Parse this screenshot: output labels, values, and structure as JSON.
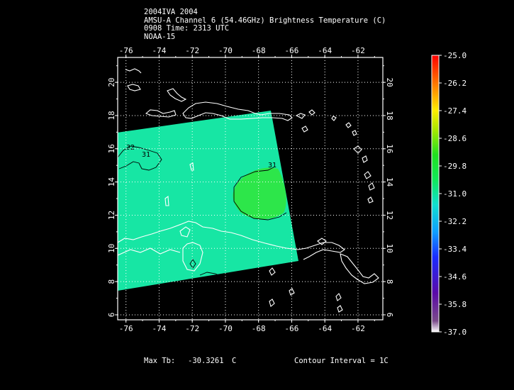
{
  "header": {
    "line1": "2004IVA 2004",
    "line2": "AMSU-A Channel 6 (54.46GHz) Brightness Temperature (C)",
    "line3": "0908 Time: 2313 UTC",
    "line4": "NOAA-15"
  },
  "map": {
    "lon_range": [
      -76.5,
      -60.5
    ],
    "lat_range": [
      5.7,
      21.5
    ],
    "lon_ticks": [
      "-76",
      "-74",
      "-72",
      "-70",
      "-68",
      "-66",
      "-64",
      "-62"
    ],
    "lat_ticks": [
      "6",
      "8",
      "10",
      "12",
      "14",
      "16",
      "18",
      "20"
    ],
    "grid": "dotted",
    "swath_color": "#17e6a4",
    "warm_patch_color": "#2de64a",
    "coastline_color": "#ffffff",
    "contour_color": "#000000",
    "contour_labels": [
      "32",
      "31",
      "31"
    ]
  },
  "colorbar": {
    "labels": [
      "-25.0",
      "-26.2",
      "-27.4",
      "-28.6",
      "-29.8",
      "-31.0",
      "-32.2",
      "-33.4",
      "-34.6",
      "-35.8",
      "-37.0"
    ],
    "max": -25.0,
    "min": -37.0
  },
  "footer": {
    "max_label": "Max Tb:",
    "max_value": "-30.3261",
    "max_unit": "C",
    "contour": "Contour Interval = 1C"
  }
}
